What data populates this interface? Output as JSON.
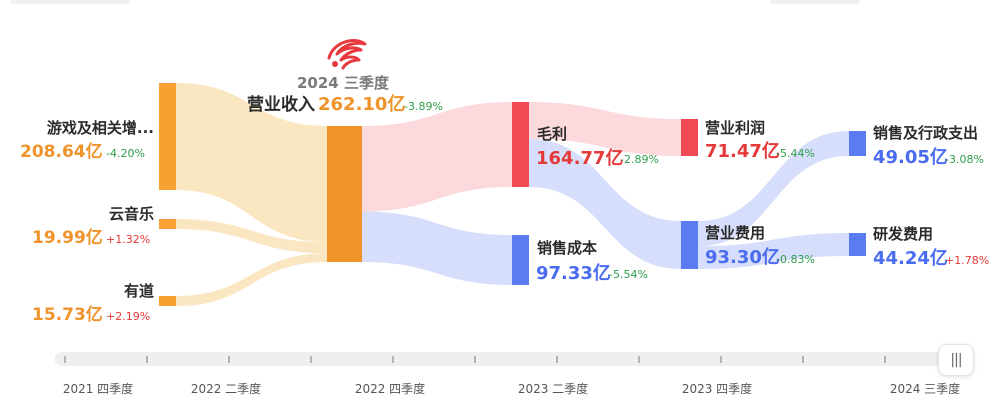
{
  "chart_data": {
    "type": "sankey",
    "period_title": "2024 三季度",
    "revenue": {
      "label": "营业收入",
      "value": "262.10亿",
      "change": "-3.89%"
    },
    "sources": [
      {
        "label": "游戏及相关增...",
        "value": "208.64亿",
        "change": "-4.20%",
        "amount": 208.64
      },
      {
        "label": "云音乐",
        "value": "19.99亿",
        "change": "+1.32%",
        "amount": 19.99
      },
      {
        "label": "有道",
        "value": "15.73亿",
        "change": "+2.19%",
        "amount": 15.73
      }
    ],
    "split": [
      {
        "label": "毛利",
        "value": "164.77亿",
        "change": "-2.89%",
        "amount": 164.77
      },
      {
        "label": "销售成本",
        "value": "97.33亿",
        "change": "-5.54%",
        "amount": 97.33
      }
    ],
    "gross_split": [
      {
        "label": "营业利润",
        "value": "71.47亿",
        "change": "-5.44%",
        "amount": 71.47
      },
      {
        "label": "营业费用",
        "value": "93.30亿",
        "change": "-0.83%",
        "amount": 93.3
      }
    ],
    "expense_split": [
      {
        "label": "销售及行政支出",
        "value": "49.05亿",
        "change": "-3.08%",
        "amount": 49.05
      },
      {
        "label": "研发费用",
        "value": "44.24亿",
        "change": "+1.78%",
        "amount": 44.24
      }
    ]
  },
  "timeline": {
    "labels": [
      "2021 四季度",
      "2022 二季度",
      "2022 四季度",
      "2023 二季度",
      "2023 四季度",
      "2024 三季度"
    ],
    "scrub_icon": "pause-bars-icon"
  },
  "colors": {
    "orange": "#f7a133",
    "orange_dark": "#f0932b",
    "orange_light": "#fbe6c2",
    "red": "#f04b55",
    "red_light": "#fcd9dc",
    "blue": "#5b7bf2",
    "blue_light": "#d6defb",
    "green": "#2e9e4b",
    "value_orange": "#f0932b",
    "value_red": "#e53939",
    "value_blue": "#4a6cf0",
    "label_dark": "#2b2b2b",
    "period_gray": "#7a7a7a"
  }
}
